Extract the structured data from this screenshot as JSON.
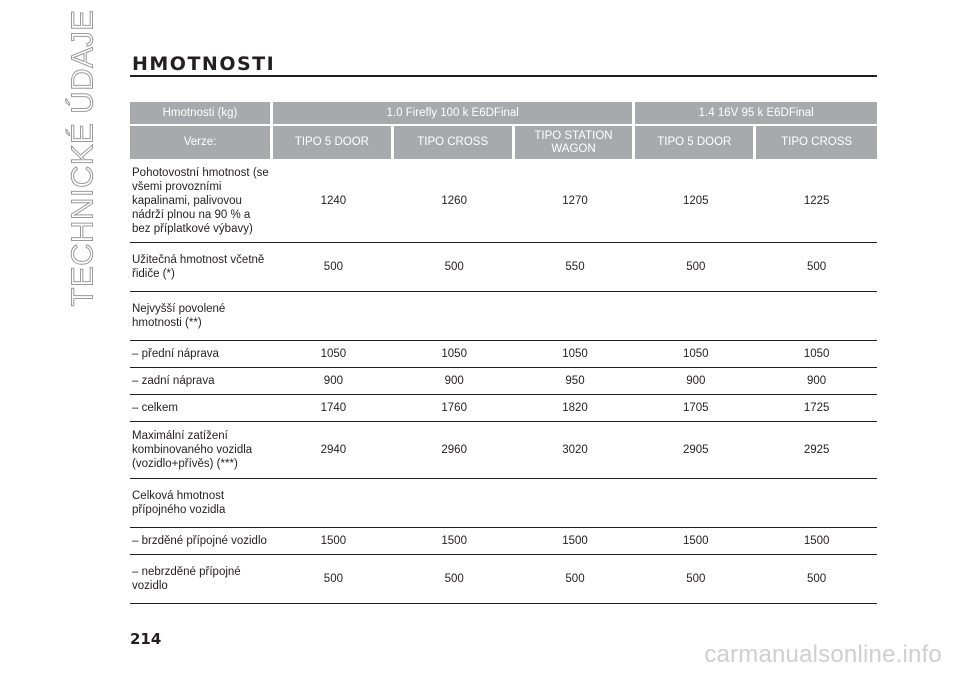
{
  "side_title": "TECHNICKÉ ÚDAJE",
  "heading": "HMOTNOSTI",
  "table": {
    "header_row1": [
      "Hmotnosti (kg)",
      "1.0 Firefly 100 k E6DFinal",
      "1.4 16V 95 k E6DFinal"
    ],
    "header_row2": [
      "Verze:",
      "TIPO 5 DOOR",
      "TIPO CROSS",
      "TIPO STATION WAGON",
      "TIPO 5 DOOR",
      "TIPO CROSS"
    ],
    "rows": [
      {
        "label": "Pohotovostní hmotnost (se všemi provozními kapalinami, palivovou nádrží plnou na 90 % a bez příplatkové výbavy)",
        "values": [
          "1240",
          "1260",
          "1270",
          "1205",
          "1225"
        ]
      },
      {
        "label": "Užitečná hmotnost včetně řidiče (*)",
        "values": [
          "500",
          "500",
          "550",
          "500",
          "500"
        ]
      },
      {
        "label": "Nejvyšší povolené hmotnosti (**)",
        "values": [
          "",
          "",
          "",
          "",
          ""
        ]
      },
      {
        "label": "– přední náprava",
        "values": [
          "1050",
          "1050",
          "1050",
          "1050",
          "1050"
        ]
      },
      {
        "label": "– zadní náprava",
        "values": [
          "900",
          "900",
          "950",
          "900",
          "900"
        ]
      },
      {
        "label": "– celkem",
        "values": [
          "1740",
          "1760",
          "1820",
          "1705",
          "1725"
        ]
      },
      {
        "label": "Maximální zatížení kombinovaného vozidla (vozidlo+přívěs) (***)",
        "values": [
          "2940",
          "2960",
          "3020",
          "2905",
          "2925"
        ]
      },
      {
        "label": "Celková hmotnost přípojného vozidla",
        "values": [
          "",
          "",
          "",
          "",
          ""
        ]
      },
      {
        "label": "– brzděné přípojné vozidlo",
        "values": [
          "1500",
          "1500",
          "1500",
          "1500",
          "1500"
        ]
      },
      {
        "label": "– nebrzděné přípojné vozidlo",
        "values": [
          "500",
          "500",
          "500",
          "500",
          "500"
        ]
      }
    ]
  },
  "page_number": "214",
  "watermark": "carmanualsonline.info"
}
